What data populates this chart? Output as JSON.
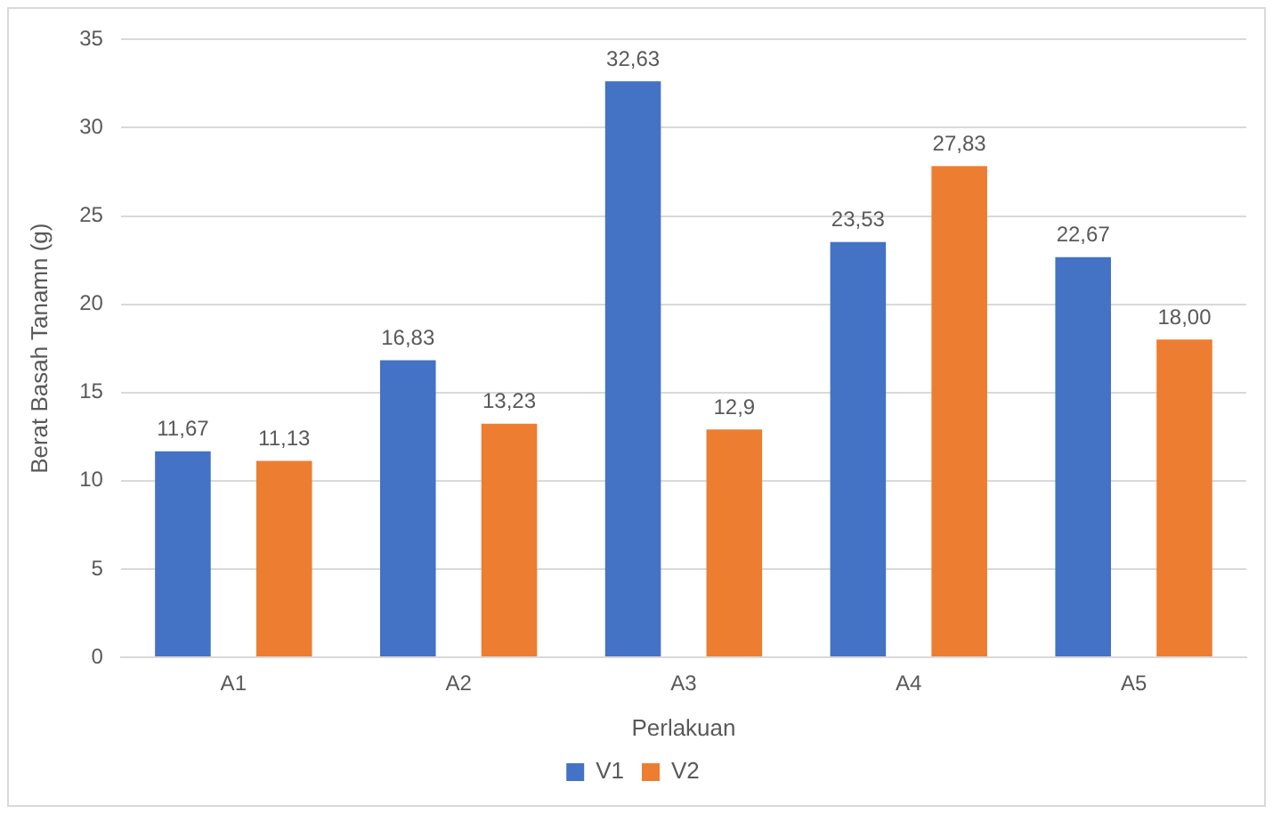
{
  "chart_data": {
    "type": "bar",
    "xlabel": "Perlakuan",
    "ylabel": "Berat Basah Tanamn (g)",
    "categories": [
      "A1",
      "A2",
      "A3",
      "A4",
      "A5"
    ],
    "series": [
      {
        "name": "V1",
        "color": "#4472c4",
        "values": [
          11.67,
          16.83,
          32.63,
          23.53,
          22.67
        ],
        "value_labels": [
          "11,67",
          "16,83",
          "32,63",
          "23,53",
          "22,67"
        ]
      },
      {
        "name": "V2",
        "color": "#ed7d31",
        "values": [
          11.13,
          13.23,
          12.9,
          27.83,
          18.0
        ],
        "value_labels": [
          "11,13",
          "13,23",
          "12,9",
          "27,83",
          "18,00"
        ]
      }
    ],
    "ylim": [
      0,
      35
    ],
    "yticks": [
      0,
      5,
      10,
      15,
      20,
      25,
      30,
      35
    ],
    "grid": "y",
    "legend": "bottom"
  }
}
